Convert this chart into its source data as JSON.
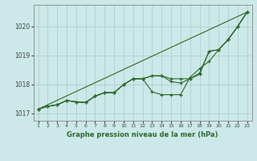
{
  "x": [
    1,
    2,
    3,
    4,
    5,
    6,
    7,
    8,
    9,
    10,
    11,
    12,
    13,
    14,
    15,
    16,
    17,
    18,
    19,
    20,
    21,
    22,
    23
  ],
  "line_wavy": [
    1017.15,
    1017.25,
    1017.3,
    1017.45,
    1017.4,
    1017.38,
    1017.6,
    1017.72,
    1017.72,
    1018.0,
    1018.2,
    1018.2,
    1017.75,
    1017.65,
    1017.65,
    1017.65,
    1018.25,
    1018.55,
    1018.8,
    1019.2,
    1019.55,
    1020.0,
    1020.5
  ],
  "line_mid1": [
    1017.15,
    1017.25,
    1017.3,
    1017.45,
    1017.4,
    1017.38,
    1017.6,
    1017.72,
    1017.72,
    1018.0,
    1018.2,
    1018.2,
    1018.3,
    1018.3,
    1018.1,
    1018.05,
    1018.2,
    1018.4,
    1019.15,
    1019.2,
    1019.55,
    1020.0,
    1020.5
  ],
  "line_mid2": [
    1017.15,
    1017.25,
    1017.3,
    1017.45,
    1017.4,
    1017.38,
    1017.6,
    1017.72,
    1017.72,
    1018.0,
    1018.2,
    1018.2,
    1018.3,
    1018.3,
    1018.2,
    1018.2,
    1018.2,
    1018.35,
    1019.15,
    1019.2,
    1019.55,
    1020.0,
    1020.5
  ],
  "line_color": "#2d6a2d",
  "bg_color": "#cce8e8",
  "grid_color": "#aacaca",
  "ylim": [
    1016.75,
    1020.75
  ],
  "yticks": [
    1017,
    1018,
    1019,
    1020
  ],
  "xticks": [
    1,
    2,
    3,
    4,
    5,
    6,
    7,
    8,
    9,
    10,
    11,
    12,
    13,
    14,
    15,
    16,
    17,
    18,
    19,
    20,
    21,
    22,
    23
  ],
  "xlabel": "Graphe pression niveau de la mer (hPa)"
}
